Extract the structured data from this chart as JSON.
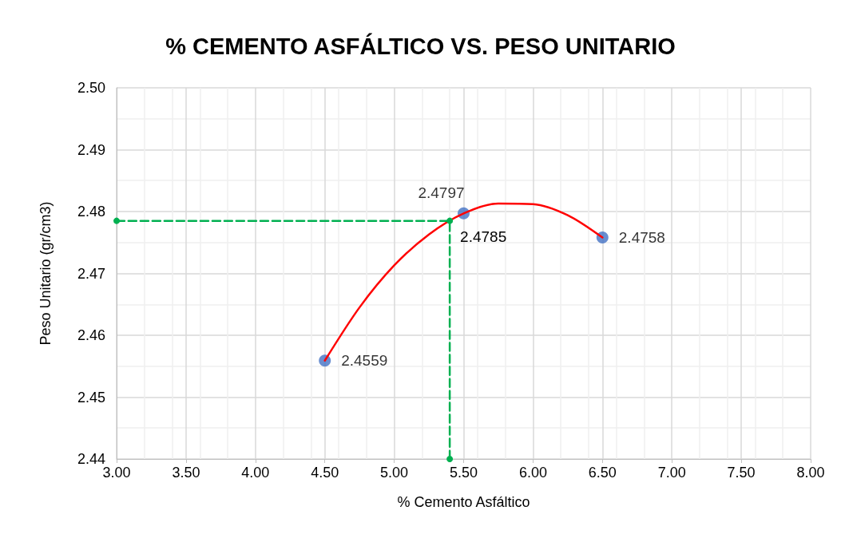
{
  "chart_data": {
    "type": "scatter",
    "title": "% CEMENTO ASFÁLTICO VS. PESO UNITARIO",
    "xlabel": "% Cemento Asfáltico",
    "ylabel": "Peso Unitario (gr/cm3)",
    "xlim": [
      3,
      8
    ],
    "ylim": [
      2.44,
      2.5
    ],
    "xticks": [
      {
        "value": 3,
        "label": "3.00"
      },
      {
        "value": 3.5,
        "label": "3.50"
      },
      {
        "value": 4,
        "label": "4.00"
      },
      {
        "value": 4.5,
        "label": "4.50"
      },
      {
        "value": 5,
        "label": "5.00"
      },
      {
        "value": 5.5,
        "label": "5.50"
      },
      {
        "value": 6,
        "label": "6.00"
      },
      {
        "value": 6.5,
        "label": "6.50"
      },
      {
        "value": 7,
        "label": "7.00"
      },
      {
        "value": 7.5,
        "label": "7.50"
      },
      {
        "value": 8,
        "label": "8.00"
      }
    ],
    "yticks": [
      2.44,
      2.45,
      2.46,
      2.47,
      2.48,
      2.49,
      {
        "value": 2.5,
        "label": "2.50"
      }
    ],
    "grid": true,
    "series": [
      {
        "type": "line",
        "color": "#ff0000",
        "marker": "none",
        "line_style": "solid",
        "x": [
          4.5,
          4.75,
          5.0,
          5.25,
          5.5,
          5.75,
          6.0,
          6.25,
          6.5
        ],
        "values": [
          2.4559,
          2.4645,
          2.4713,
          2.4763,
          2.4797,
          2.4813,
          2.4812,
          2.4794,
          2.4758
        ]
      },
      {
        "type": "line",
        "color": "#00b050",
        "marker": "circle",
        "line_style": "dashed",
        "x": [
          3.0,
          5.4,
          5.4
        ],
        "values": [
          2.4785,
          2.4785,
          2.44
        ],
        "value_labels": [
          null,
          "2.4785",
          null
        ]
      },
      {
        "color": "#4472c4",
        "marker": "circle",
        "x": [
          4.5,
          5.5,
          6.5
        ],
        "values": [
          2.4559,
          2.4797,
          2.4758
        ],
        "value_labels": [
          "2.4559",
          "2.4797",
          "2.4758"
        ]
      }
    ]
  }
}
